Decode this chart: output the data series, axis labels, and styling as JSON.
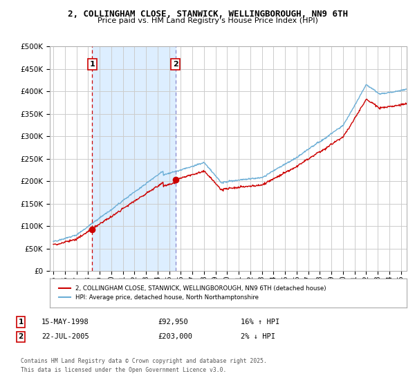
{
  "title": "2, COLLINGHAM CLOSE, STANWICK, WELLINGBOROUGH, NN9 6TH",
  "subtitle": "Price paid vs. HM Land Registry's House Price Index (HPI)",
  "background_color": "#ffffff",
  "grid_color": "#cccccc",
  "sale1_date": 1998.37,
  "sale1_price": 92950,
  "sale2_date": 2005.55,
  "sale2_price": 203000,
  "sale1_date_str": "15-MAY-1998",
  "sale1_price_str": "£92,950",
  "sale1_hpi_str": "16% ↑ HPI",
  "sale2_date_str": "22-JUL-2005",
  "sale2_price_str": "£203,000",
  "sale2_hpi_str": "2% ↓ HPI",
  "hpi_line_color": "#6baed6",
  "price_line_color": "#cc0000",
  "sale_vline_color": "#cc0000",
  "shade_color": "#ddeeff",
  "ylim": [
    0,
    500000
  ],
  "xlim_start": 1994.7,
  "xlim_end": 2025.5,
  "legend_label_price": "2, COLLINGHAM CLOSE, STANWICK, WELLINGBOROUGH, NN9 6TH (detached house)",
  "legend_label_hpi": "HPI: Average price, detached house, North Northamptonshire",
  "footnote": "Contains HM Land Registry data © Crown copyright and database right 2025.\nThis data is licensed under the Open Government Licence v3.0.",
  "tick_years": [
    1995,
    1996,
    1997,
    1998,
    1999,
    2000,
    2001,
    2002,
    2003,
    2004,
    2005,
    2006,
    2007,
    2008,
    2009,
    2010,
    2011,
    2012,
    2013,
    2014,
    2015,
    2016,
    2017,
    2018,
    2019,
    2020,
    2021,
    2022,
    2023,
    2024,
    2025
  ]
}
